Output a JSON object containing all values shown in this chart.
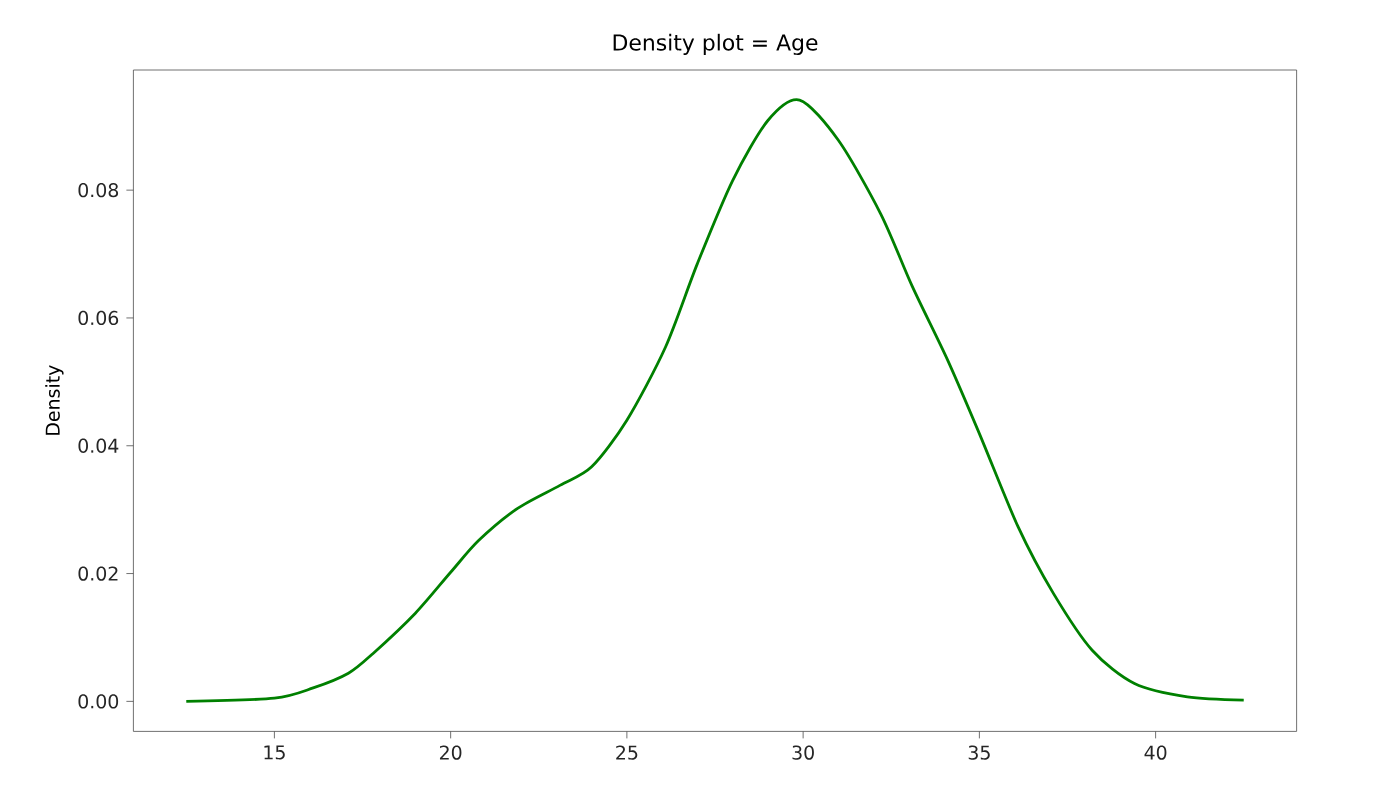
{
  "chart_data": {
    "type": "line",
    "title": "Density plot = Age",
    "ylabel": "Density",
    "x": [
      12.5,
      15.0,
      16.1,
      17.1,
      17.8,
      19.0,
      20.0,
      20.8,
      21.9,
      23.1,
      24.0,
      25.0,
      26.1,
      27.0,
      28.0,
      29.0,
      29.9,
      31.0,
      32.2,
      33.1,
      34.1,
      35.0,
      36.1,
      37.1,
      38.2,
      39.4,
      40.9,
      42.5
    ],
    "series": [
      {
        "color": "#008000",
        "values": [
          0.0,
          0.0005,
          0.0021,
          0.0044,
          0.0075,
          0.0138,
          0.0202,
          0.0252,
          0.0302,
          0.0338,
          0.0367,
          0.044,
          0.0555,
          0.0685,
          0.0815,
          0.0909,
          0.0941,
          0.0878,
          0.0763,
          0.0649,
          0.0534,
          0.0419,
          0.0273,
          0.0169,
          0.008,
          0.0028,
          0.0007,
          0.0002
        ]
      }
    ],
    "xlim": [
      11.0,
      44.0
    ],
    "ylim": [
      -0.0047,
      0.0988
    ],
    "xticks": [
      15,
      20,
      25,
      30,
      35,
      40
    ],
    "yticks": [
      {
        "value": 0,
        "label": "0.00"
      },
      {
        "value": 0.02,
        "label": "0.02"
      },
      {
        "value": 0.04,
        "label": "0.04"
      },
      {
        "value": 0.06,
        "label": "0.06"
      },
      {
        "value": 0.08,
        "label": "0.08"
      }
    ],
    "grid": false,
    "marker": "none",
    "line_style": "solid"
  }
}
